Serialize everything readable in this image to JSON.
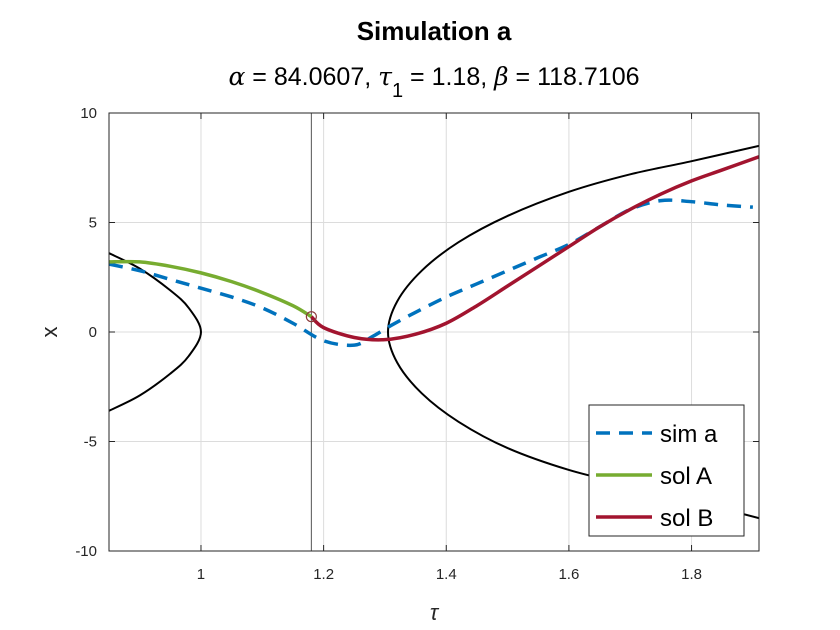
{
  "chart_data": {
    "type": "line",
    "title": "Simulation a",
    "subtitle": {
      "alpha_symbol": "α",
      "alpha_text": " = 84.0607, ",
      "tau_symbol": "τ",
      "tau_sub": "1",
      "tau_text": " = 1.18, ",
      "beta_symbol": "β",
      "beta_text": " = 118.7106"
    },
    "xlabel": "τ",
    "ylabel": "x",
    "xlim": [
      0.85,
      1.91
    ],
    "ylim": [
      -10,
      10
    ],
    "xticks": [
      1,
      1.2,
      1.4,
      1.6,
      1.8
    ],
    "xtick_labels": [
      "1",
      "1.2",
      "1.4",
      "1.6",
      "1.8"
    ],
    "yticks": [
      -10,
      -5,
      0,
      5,
      10
    ],
    "ytick_labels": [
      "-10",
      "-5",
      "0",
      "5",
      "10"
    ],
    "grid": true,
    "legend_position": "bottom-right",
    "vertical_line_x": 1.18,
    "marker": {
      "x": 1.18,
      "y": 0.7
    },
    "series": [
      {
        "name": "sim a",
        "style": "dashed",
        "color": "#0072BD",
        "x": [
          0.85,
          0.9,
          0.95,
          1.0,
          1.05,
          1.1,
          1.15,
          1.2,
          1.25,
          1.28,
          1.31,
          1.35,
          1.4,
          1.45,
          1.5,
          1.55,
          1.6,
          1.65,
          1.7,
          1.75,
          1.8,
          1.85,
          1.9
        ],
        "y": [
          3.1,
          2.8,
          2.4,
          2.0,
          1.6,
          1.1,
          0.4,
          -0.4,
          -0.6,
          -0.2,
          0.3,
          0.9,
          1.6,
          2.2,
          2.8,
          3.4,
          4.0,
          4.8,
          5.6,
          6.0,
          5.95,
          5.8,
          5.7
        ]
      },
      {
        "name": "sol A",
        "style": "solid",
        "color": "#77AC30",
        "x": [
          0.85,
          0.9,
          0.95,
          1.0,
          1.05,
          1.1,
          1.15,
          1.18
        ],
        "y": [
          3.2,
          3.2,
          3.0,
          2.7,
          2.3,
          1.8,
          1.2,
          0.7
        ]
      },
      {
        "name": "sol B",
        "style": "solid",
        "color": "#A2142F",
        "x": [
          1.18,
          1.2,
          1.25,
          1.3,
          1.35,
          1.4,
          1.45,
          1.5,
          1.55,
          1.6,
          1.65,
          1.7,
          1.75,
          1.8,
          1.85,
          1.91
        ],
        "y": [
          0.7,
          0.2,
          -0.25,
          -0.35,
          -0.1,
          0.4,
          1.2,
          2.1,
          3.0,
          3.9,
          4.8,
          5.6,
          6.3,
          6.9,
          7.4,
          8.0
        ]
      }
    ],
    "boundary_curves": [
      {
        "color": "#000000",
        "style": "solid",
        "x": [
          0.85,
          0.9,
          0.95,
          0.98,
          1.0,
          0.98,
          0.95,
          0.9,
          0.85
        ],
        "y": [
          3.6,
          2.9,
          1.9,
          1.1,
          0.0,
          -1.1,
          -1.9,
          -2.9,
          -3.6
        ]
      },
      {
        "color": "#000000",
        "style": "solid",
        "x": [
          1.91,
          1.8,
          1.7,
          1.6,
          1.5,
          1.42,
          1.36,
          1.32,
          1.305,
          1.32,
          1.36,
          1.42,
          1.5,
          1.6,
          1.7,
          1.8,
          1.91
        ],
        "y": [
          8.5,
          7.8,
          7.2,
          6.4,
          5.3,
          4.1,
          2.8,
          1.4,
          0.0,
          -1.4,
          -2.8,
          -4.1,
          -5.3,
          -6.3,
          -7.0,
          -7.7,
          -8.5
        ]
      }
    ]
  }
}
